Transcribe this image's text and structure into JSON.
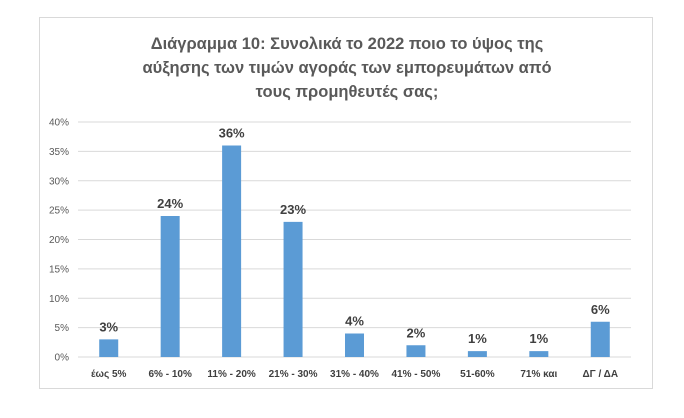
{
  "chart_data": {
    "type": "bar",
    "title_lines": [
      "Διάγραμμα 10: Συνολικά το 2022 ποιο το ύψος της",
      "αύξησης των τιμών αγοράς των εμπορευμάτων από",
      "τους προμηθευτές σας;"
    ],
    "categories": [
      "έως  5%",
      "6% - 10%",
      "11% - 20%",
      "21% - 30%",
      "31% - 40%",
      "41% - 50%",
      "51-60%",
      "71% και",
      "ΔΓ / ΔΑ"
    ],
    "values": [
      3,
      24,
      36,
      23,
      4,
      2,
      1,
      1,
      6
    ],
    "data_labels": [
      "3%",
      "24%",
      "36%",
      "23%",
      "4%",
      "2%",
      "1%",
      "1%",
      "6%"
    ],
    "y_ticks": [
      "0%",
      "5%",
      "10%",
      "15%",
      "20%",
      "25%",
      "30%",
      "35%",
      "40%"
    ],
    "ylim": [
      0,
      40
    ],
    "grid": true,
    "bar_color": "#5b9bd5",
    "grid_color": "#d9d9d9"
  }
}
